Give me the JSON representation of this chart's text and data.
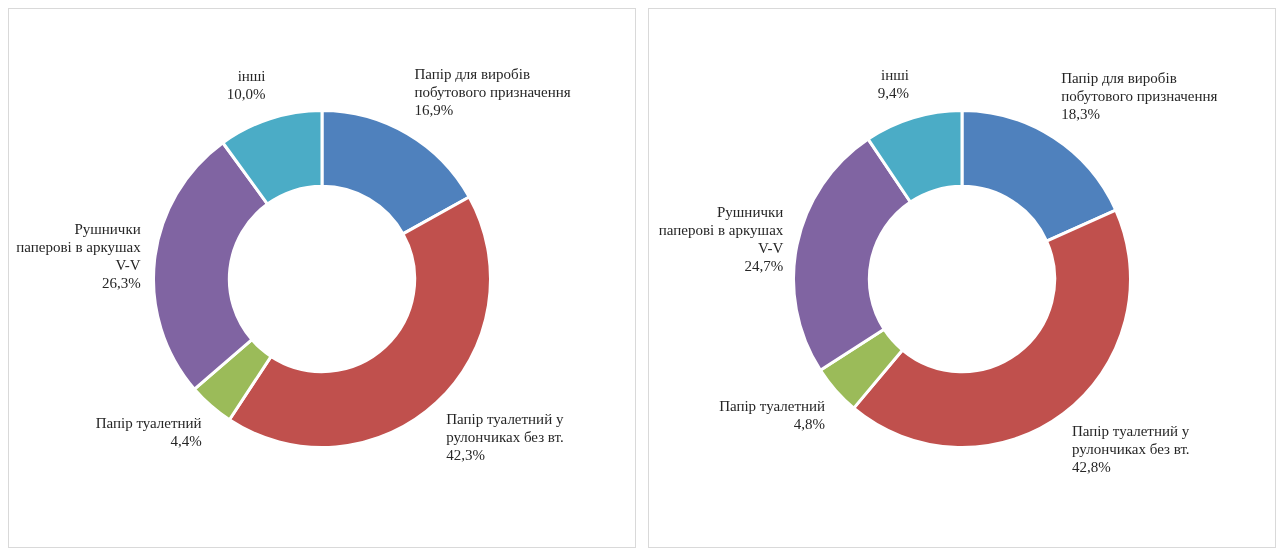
{
  "chart_data": [
    {
      "type": "donut",
      "categories": [
        "Папір для виробів побутового призначення",
        "Папір туалетний у рулончиках без вт.",
        "Папір туалетний",
        "Рушнички паперові в аркушах V-V",
        "інші"
      ],
      "values": [
        16.9,
        42.3,
        4.4,
        26.3,
        10.0
      ],
      "value_labels": [
        "16,9%",
        "42,3%",
        "4,4%",
        "26,3%",
        "10,0%"
      ],
      "colors": [
        "#4f81bd",
        "#c0504d",
        "#9bbb59",
        "#8064a2",
        "#4bacc6"
      ],
      "legend": false
    },
    {
      "type": "donut",
      "categories": [
        "Папір для виробів побутового призначення",
        "Папір туалетний у рулончиках без вт.",
        "Папір туалетний",
        "Рушнички паперові в аркушах V-V",
        "інші"
      ],
      "values": [
        18.3,
        42.8,
        4.8,
        24.7,
        9.4
      ],
      "value_labels": [
        "18,3%",
        "42,8%",
        "4,8%",
        "24,7%",
        "9,4%"
      ],
      "colors": [
        "#4f81bd",
        "#c0504d",
        "#9bbb59",
        "#8064a2",
        "#4bacc6"
      ],
      "legend": false
    }
  ]
}
